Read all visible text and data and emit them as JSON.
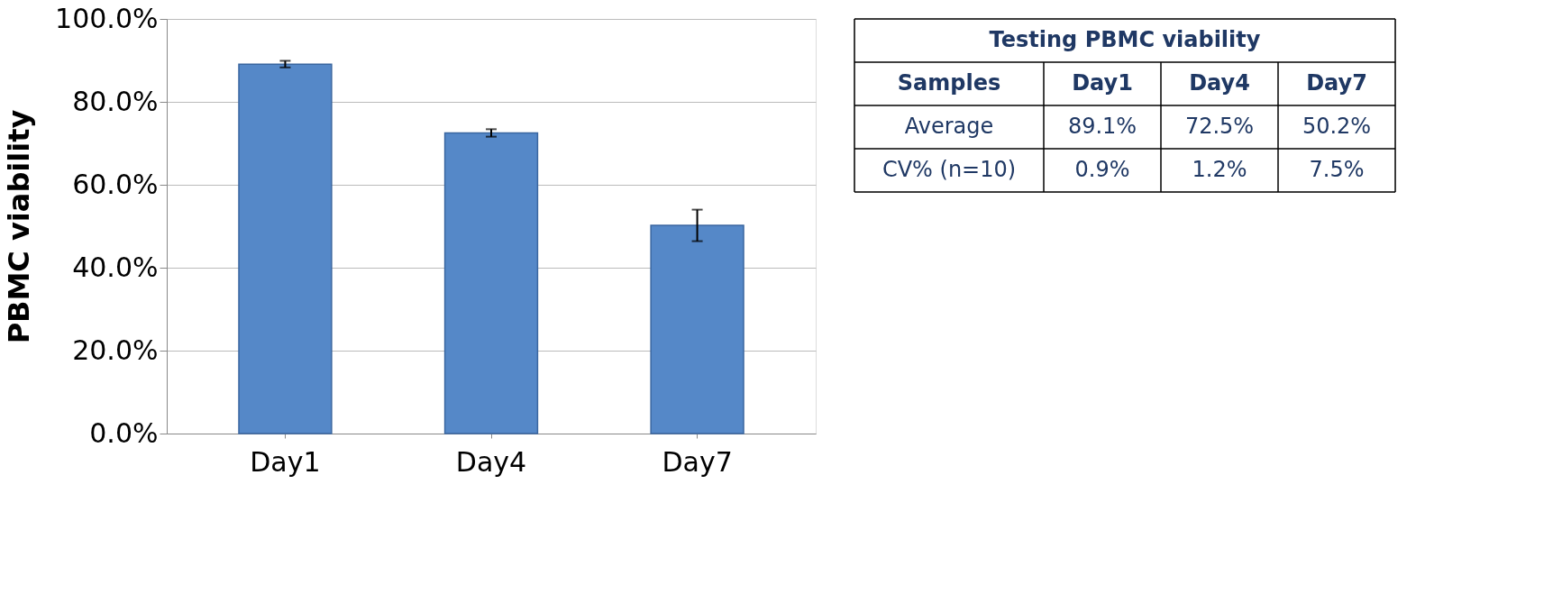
{
  "chart_data": {
    "type": "bar",
    "ylabel": "PBMC viability",
    "categories": [
      "Day1",
      "Day4",
      "Day7"
    ],
    "values": [
      89.1,
      72.5,
      50.2
    ],
    "color": "#5588c8",
    "errors": [
      0.8,
      0.9,
      3.8
    ],
    "ylim": [
      0,
      100
    ],
    "yticks": [
      {
        "value": 0,
        "label": "0.0%"
      },
      {
        "value": 20,
        "label": "20.0%"
      },
      {
        "value": 40,
        "label": "40.0%"
      },
      {
        "value": 60,
        "label": "60.0%"
      },
      {
        "value": 80,
        "label": "80.0%"
      },
      {
        "value": 100,
        "label": "100.0%"
      }
    ],
    "grid": "y",
    "annotations": [
      "Testing PBMC viability",
      "Samples",
      "Average",
      "89.1%",
      "72.5%",
      "50.2%",
      "CV% (n=10)",
      "0.9%",
      "1.2%",
      "7.5%"
    ]
  }
}
